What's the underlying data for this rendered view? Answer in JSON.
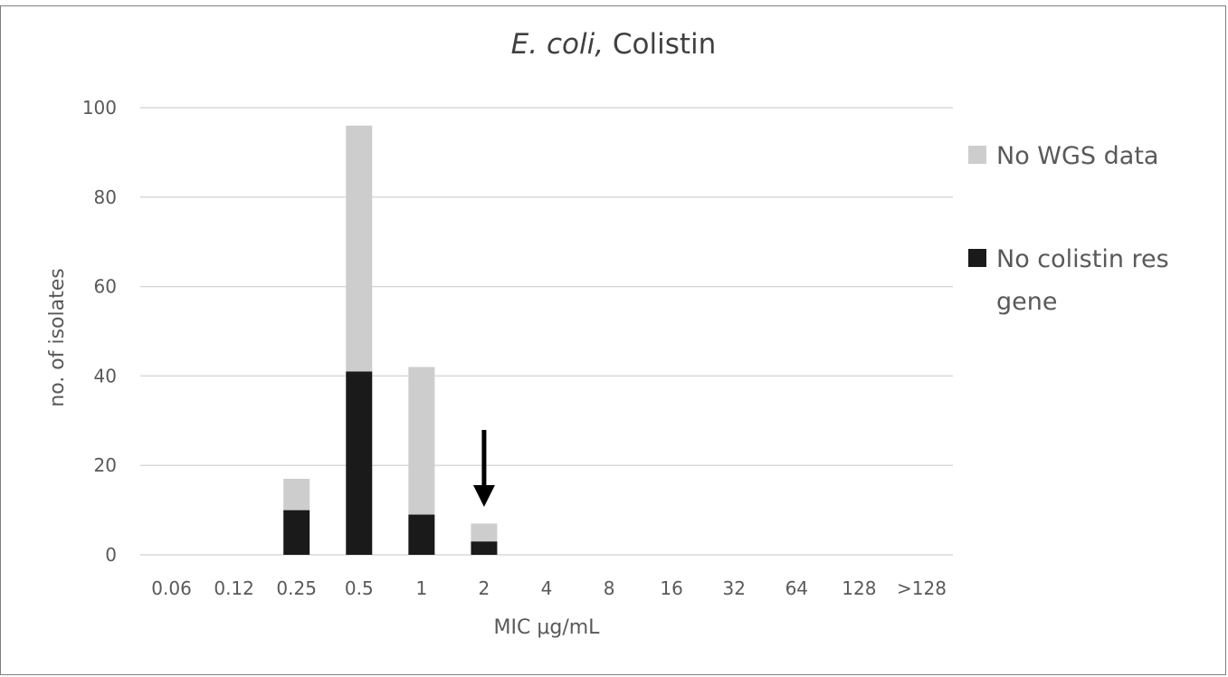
{
  "chart_data": {
    "type": "bar",
    "stacked": true,
    "title_italic": "E. coli,",
    "title_rest": " Colistin",
    "xlabel": "MIC μg/mL",
    "ylabel": "no. of isolates",
    "categories": [
      "0.06",
      "0.12",
      "0.25",
      "0.5",
      "1",
      "2",
      "4",
      "8",
      "16",
      "32",
      "64",
      "128",
      ">128"
    ],
    "ylim": [
      0,
      100
    ],
    "yticks": [
      0,
      20,
      40,
      60,
      80,
      100
    ],
    "grid": true,
    "legend_position": "right",
    "series": [
      {
        "name": "No colistin res gene",
        "color": "#1a1a1a",
        "values": [
          0,
          0,
          10,
          41,
          9,
          3,
          0,
          0,
          0,
          0,
          0,
          0,
          0
        ]
      },
      {
        "name": "No WGS data",
        "color": "#cdcdcd",
        "values": [
          0,
          0,
          7,
          55,
          33,
          4,
          0,
          0,
          0,
          0,
          0,
          0,
          0
        ]
      }
    ],
    "legend": [
      {
        "lines": [
          "No WGS data"
        ],
        "color": "#cdcdcd"
      },
      {
        "lines": [
          "No colistin res",
          "gene"
        ],
        "color": "#1a1a1a"
      }
    ],
    "annotation": {
      "type": "arrow-down",
      "category": "2"
    }
  }
}
